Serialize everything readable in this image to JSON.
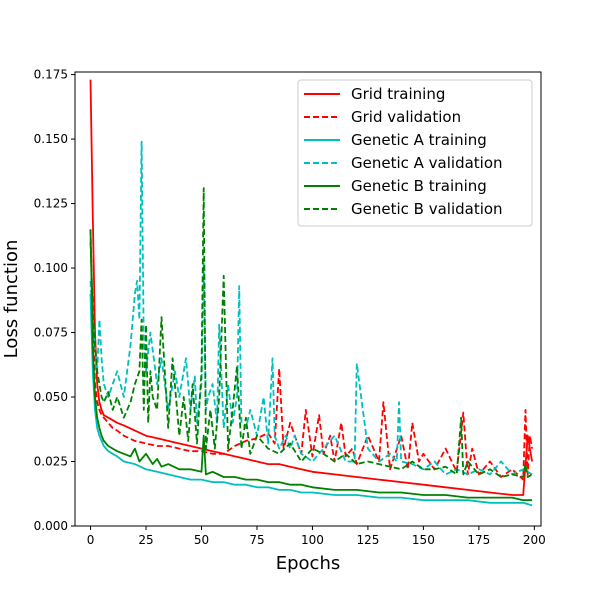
{
  "chart_data": {
    "type": "line",
    "xlabel": "Epochs",
    "ylabel": "Loss function",
    "xlim": [
      -7,
      203
    ],
    "ylim": [
      0.0,
      0.176
    ],
    "x_ticks": [
      0,
      25,
      50,
      75,
      100,
      125,
      150,
      175,
      200
    ],
    "y_ticks": [
      0.0,
      0.025,
      0.05,
      0.075,
      0.1,
      0.125,
      0.15,
      0.175
    ],
    "y_tick_labels": [
      "0.000",
      "0.025",
      "0.050",
      "0.075",
      "0.100",
      "0.125",
      "0.150",
      "0.175"
    ],
    "grid": false,
    "legend_position": "top-right",
    "series": [
      {
        "name": "Grid training",
        "color": "#ff0000",
        "style": "solid",
        "x": [
          0,
          1,
          2,
          3,
          4,
          5,
          6,
          8,
          10,
          12,
          15,
          20,
          25,
          30,
          35,
          40,
          45,
          50,
          55,
          60,
          65,
          70,
          75,
          80,
          85,
          90,
          95,
          100,
          110,
          120,
          130,
          140,
          150,
          160,
          170,
          180,
          190,
          195,
          197,
          198,
          199
        ],
        "y": [
          0.173,
          0.12,
          0.075,
          0.055,
          0.048,
          0.045,
          0.043,
          0.042,
          0.041,
          0.04,
          0.039,
          0.037,
          0.035,
          0.034,
          0.033,
          0.032,
          0.031,
          0.03,
          0.029,
          0.028,
          0.027,
          0.026,
          0.025,
          0.024,
          0.024,
          0.023,
          0.022,
          0.021,
          0.02,
          0.019,
          0.018,
          0.017,
          0.016,
          0.015,
          0.014,
          0.013,
          0.012,
          0.012,
          0.035,
          0.03,
          0.025
        ]
      },
      {
        "name": "Grid validation",
        "color": "#ff0000",
        "style": "dashed",
        "x": [
          0,
          1,
          2,
          3,
          4,
          5,
          6,
          8,
          10,
          12,
          15,
          20,
          25,
          30,
          35,
          40,
          45,
          50,
          55,
          60,
          65,
          70,
          75,
          80,
          83,
          85,
          87,
          90,
          95,
          97,
          100,
          103,
          105,
          108,
          110,
          113,
          115,
          118,
          120,
          125,
          130,
          132,
          135,
          140,
          143,
          145,
          148,
          150,
          155,
          160,
          165,
          168,
          170,
          172,
          175,
          180,
          185,
          190,
          195,
          196,
          197,
          198,
          199
        ],
        "y": [
          0.115,
          0.08,
          0.055,
          0.048,
          0.045,
          0.043,
          0.042,
          0.04,
          0.038,
          0.037,
          0.035,
          0.033,
          0.032,
          0.031,
          0.031,
          0.03,
          0.029,
          0.029,
          0.028,
          0.028,
          0.031,
          0.033,
          0.034,
          0.036,
          0.032,
          0.061,
          0.03,
          0.04,
          0.028,
          0.045,
          0.027,
          0.043,
          0.028,
          0.035,
          0.025,
          0.04,
          0.027,
          0.03,
          0.024,
          0.035,
          0.025,
          0.048,
          0.022,
          0.035,
          0.022,
          0.04,
          0.025,
          0.028,
          0.022,
          0.03,
          0.021,
          0.044,
          0.02,
          0.03,
          0.02,
          0.025,
          0.019,
          0.022,
          0.018,
          0.045,
          0.02,
          0.035,
          0.03
        ]
      },
      {
        "name": "Genetic A training",
        "color": "#00bfbf",
        "style": "solid",
        "x": [
          0,
          1,
          2,
          3,
          4,
          5,
          6,
          8,
          10,
          12,
          15,
          20,
          25,
          30,
          35,
          40,
          45,
          50,
          55,
          60,
          65,
          70,
          75,
          80,
          85,
          90,
          95,
          100,
          110,
          120,
          130,
          140,
          150,
          160,
          170,
          180,
          190,
          195,
          199
        ],
        "y": [
          0.09,
          0.06,
          0.045,
          0.038,
          0.035,
          0.033,
          0.031,
          0.029,
          0.028,
          0.027,
          0.025,
          0.024,
          0.022,
          0.021,
          0.02,
          0.019,
          0.018,
          0.018,
          0.017,
          0.017,
          0.016,
          0.016,
          0.015,
          0.015,
          0.014,
          0.014,
          0.013,
          0.013,
          0.012,
          0.012,
          0.011,
          0.011,
          0.01,
          0.01,
          0.01,
          0.009,
          0.009,
          0.009,
          0.008
        ]
      },
      {
        "name": "Genetic A validation",
        "color": "#00bfbf",
        "style": "dashed",
        "x": [
          0,
          1,
          2,
          3,
          4,
          5,
          6,
          8,
          10,
          12,
          15,
          18,
          20,
          21,
          22,
          23,
          24,
          25,
          27,
          30,
          32,
          35,
          38,
          40,
          43,
          45,
          47,
          48,
          50,
          51,
          52,
          53,
          55,
          57,
          58,
          60,
          62,
          64,
          66,
          67,
          68,
          70,
          72,
          75,
          78,
          80,
          82,
          83,
          85,
          88,
          90,
          92,
          95,
          100,
          105,
          110,
          115,
          119,
          120,
          125,
          130,
          135,
          138,
          139,
          140,
          145,
          150,
          155,
          160,
          165,
          170,
          175,
          180,
          185,
          190,
          195,
          199
        ],
        "y": [
          0.095,
          0.08,
          0.07,
          0.06,
          0.08,
          0.065,
          0.055,
          0.05,
          0.055,
          0.06,
          0.05,
          0.07,
          0.09,
          0.095,
          0.08,
          0.149,
          0.07,
          0.06,
          0.075,
          0.055,
          0.065,
          0.045,
          0.06,
          0.05,
          0.065,
          0.045,
          0.058,
          0.04,
          0.055,
          0.102,
          0.045,
          0.05,
          0.055,
          0.04,
          0.078,
          0.038,
          0.055,
          0.04,
          0.05,
          0.093,
          0.04,
          0.038,
          0.045,
          0.035,
          0.05,
          0.032,
          0.065,
          0.035,
          0.03,
          0.035,
          0.03,
          0.035,
          0.028,
          0.025,
          0.03,
          0.035,
          0.025,
          0.025,
          0.063,
          0.03,
          0.025,
          0.028,
          0.025,
          0.048,
          0.025,
          0.024,
          0.022,
          0.025,
          0.02,
          0.022,
          0.02,
          0.022,
          0.02,
          0.025,
          0.02,
          0.022,
          0.02
        ]
      },
      {
        "name": "Genetic B training",
        "color": "#008000",
        "style": "solid",
        "x": [
          0,
          1,
          2,
          3,
          4,
          5,
          6,
          8,
          10,
          12,
          15,
          18,
          20,
          22,
          25,
          28,
          30,
          32,
          35,
          40,
          45,
          50,
          51,
          52,
          55,
          60,
          65,
          70,
          75,
          80,
          85,
          90,
          95,
          100,
          110,
          120,
          130,
          140,
          150,
          160,
          170,
          180,
          190,
          195,
          199
        ],
        "y": [
          0.115,
          0.07,
          0.05,
          0.042,
          0.038,
          0.035,
          0.033,
          0.031,
          0.03,
          0.029,
          0.028,
          0.027,
          0.03,
          0.025,
          0.028,
          0.024,
          0.026,
          0.023,
          0.024,
          0.022,
          0.022,
          0.021,
          0.035,
          0.02,
          0.021,
          0.019,
          0.019,
          0.018,
          0.018,
          0.017,
          0.017,
          0.016,
          0.016,
          0.015,
          0.014,
          0.014,
          0.013,
          0.013,
          0.012,
          0.012,
          0.011,
          0.011,
          0.011,
          0.01,
          0.01
        ]
      },
      {
        "name": "Genetic B validation",
        "color": "#008000",
        "style": "dashed",
        "x": [
          0,
          1,
          2,
          3,
          4,
          5,
          6,
          8,
          10,
          12,
          15,
          18,
          20,
          22,
          23,
          24,
          25,
          26,
          27,
          28,
          30,
          32,
          35,
          37,
          40,
          42,
          44,
          46,
          48,
          50,
          51,
          52,
          54,
          56,
          58,
          60,
          62,
          64,
          66,
          68,
          70,
          72,
          75,
          80,
          85,
          90,
          95,
          100,
          105,
          110,
          115,
          120,
          125,
          130,
          135,
          140,
          145,
          150,
          155,
          160,
          165,
          167,
          168,
          170,
          175,
          180,
          185,
          190,
          195,
          196,
          197,
          199
        ],
        "y": [
          0.11,
          0.085,
          0.07,
          0.06,
          0.055,
          0.05,
          0.048,
          0.052,
          0.045,
          0.05,
          0.042,
          0.048,
          0.055,
          0.06,
          0.08,
          0.045,
          0.078,
          0.04,
          0.06,
          0.05,
          0.045,
          0.081,
          0.038,
          0.065,
          0.035,
          0.05,
          0.033,
          0.055,
          0.032,
          0.06,
          0.131,
          0.03,
          0.045,
          0.03,
          0.05,
          0.097,
          0.03,
          0.045,
          0.062,
          0.03,
          0.042,
          0.028,
          0.035,
          0.03,
          0.028,
          0.032,
          0.025,
          0.03,
          0.028,
          0.025,
          0.028,
          0.024,
          0.025,
          0.024,
          0.023,
          0.022,
          0.025,
          0.022,
          0.022,
          0.023,
          0.02,
          0.042,
          0.02,
          0.025,
          0.02,
          0.022,
          0.019,
          0.02,
          0.019,
          0.024,
          0.019,
          0.02
        ]
      }
    ]
  }
}
